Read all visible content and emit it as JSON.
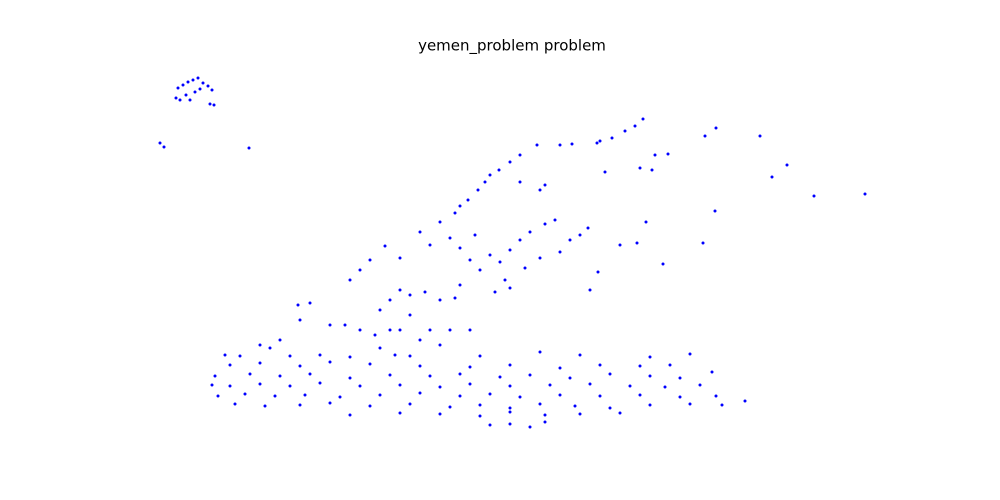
{
  "chart_data": {
    "type": "scatter",
    "title": "yemen_problem problem",
    "color": "#0000ff",
    "xlim": [
      125,
      900
    ],
    "ylim": [
      440,
      60
    ],
    "x": [
      178,
      183,
      188,
      193,
      198,
      203,
      208,
      212,
      186,
      195,
      200,
      176,
      190,
      210,
      214,
      180,
      160,
      164,
      249,
      643,
      635,
      625,
      612,
      600,
      597,
      572,
      560,
      537,
      520,
      510,
      499,
      490,
      485,
      478,
      468,
      460,
      455,
      705,
      716,
      760,
      787,
      772,
      814,
      865,
      655,
      668,
      652,
      640,
      605,
      540,
      545,
      520,
      715,
      646,
      703,
      663,
      637,
      620,
      420,
      440,
      450,
      430,
      460,
      475,
      490,
      500,
      510,
      520,
      530,
      545,
      555,
      570,
      580,
      588,
      560,
      540,
      525,
      505,
      480,
      470,
      460,
      455,
      440,
      400,
      385,
      370,
      360,
      350,
      400,
      410,
      425,
      390,
      380,
      598,
      590,
      510,
      495,
      298,
      310,
      300,
      330,
      345,
      360,
      375,
      390,
      410,
      400,
      430,
      450,
      470,
      420,
      440,
      280,
      260,
      270,
      380,
      395,
      225,
      240,
      290,
      320,
      350,
      410,
      480,
      540,
      580,
      650,
      690,
      230,
      260,
      300,
      330,
      370,
      420,
      470,
      510,
      560,
      600,
      640,
      670,
      215,
      250,
      280,
      310,
      350,
      390,
      430,
      460,
      500,
      530,
      570,
      610,
      650,
      680,
      712,
      212,
      230,
      260,
      290,
      320,
      360,
      400,
      440,
      470,
      510,
      550,
      590,
      630,
      665,
      700,
      218,
      245,
      275,
      305,
      340,
      380,
      420,
      460,
      490,
      520,
      560,
      600,
      640,
      680,
      716,
      745,
      235,
      265,
      300,
      330,
      370,
      410,
      450,
      480,
      510,
      540,
      575,
      610,
      650,
      690,
      722,
      350,
      400,
      440,
      480,
      510,
      545,
      580,
      620,
      490,
      510,
      545,
      530
    ],
    "y": [
      88,
      85,
      82,
      80,
      78,
      83,
      86,
      90,
      95,
      92,
      89,
      98,
      100,
      104,
      105,
      100,
      143,
      147,
      148,
      119,
      126,
      131,
      138,
      141,
      143,
      144,
      145,
      145,
      155,
      162,
      170,
      175,
      182,
      190,
      200,
      206,
      213,
      136,
      128,
      136,
      165,
      177,
      196,
      194,
      155,
      154,
      170,
      168,
      172,
      190,
      185,
      182,
      211,
      222,
      243,
      264,
      243,
      245,
      232,
      222,
      238,
      245,
      248,
      235,
      255,
      262,
      250,
      240,
      232,
      224,
      220,
      240,
      235,
      228,
      252,
      258,
      268,
      280,
      270,
      260,
      285,
      298,
      300,
      258,
      246,
      260,
      270,
      280,
      290,
      295,
      292,
      300,
      310,
      272,
      290,
      288,
      292,
      305,
      303,
      320,
      325,
      325,
      330,
      335,
      330,
      315,
      330,
      330,
      330,
      330,
      340,
      345,
      340,
      345,
      348,
      348,
      355,
      355,
      356,
      356,
      355,
      357,
      356,
      356,
      352,
      355,
      357,
      354,
      365,
      363,
      366,
      362,
      364,
      366,
      367,
      365,
      368,
      365,
      366,
      365,
      376,
      374,
      376,
      374,
      378,
      375,
      376,
      374,
      377,
      375,
      378,
      374,
      376,
      378,
      372,
      385,
      386,
      384,
      386,
      383,
      386,
      385,
      387,
      384,
      386,
      385,
      384,
      386,
      387,
      385,
      396,
      394,
      396,
      395,
      397,
      395,
      393,
      396,
      394,
      397,
      395,
      396,
      395,
      397,
      396,
      401,
      404,
      406,
      405,
      403,
      406,
      404,
      407,
      405,
      408,
      404,
      406,
      408,
      405,
      404,
      405,
      415,
      413,
      414,
      416,
      412,
      415,
      414,
      413,
      425,
      424,
      422,
      427
    ]
  }
}
